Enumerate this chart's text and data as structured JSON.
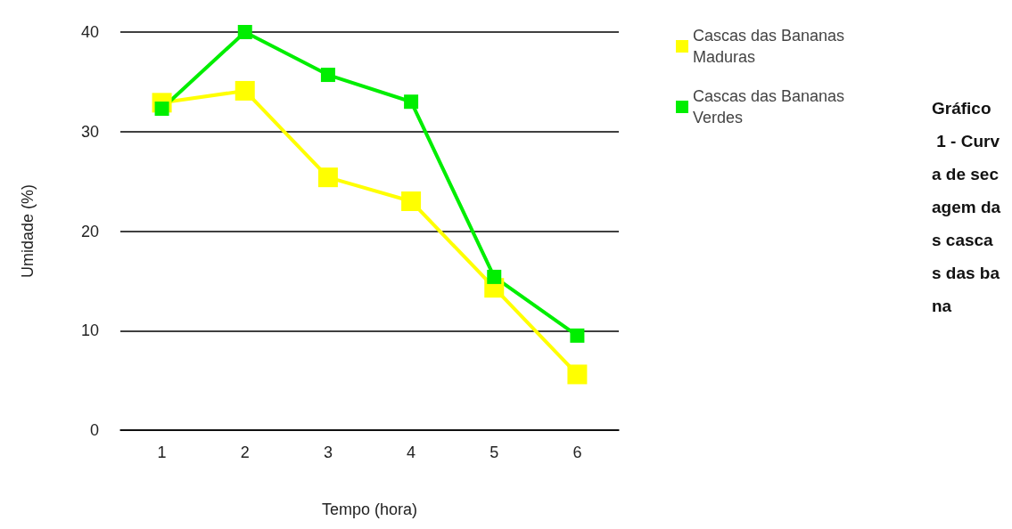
{
  "chart_data": {
    "type": "line",
    "categories": [
      "1",
      "2",
      "3",
      "4",
      "5",
      "6"
    ],
    "xlabel": "Tempo (hora)",
    "ylabel": "Umidade (%)",
    "ylim": [
      0,
      40
    ],
    "yticks": [
      0,
      10,
      20,
      30,
      40
    ],
    "grid": "y",
    "legend": "top right",
    "marker": "square",
    "line_style": "solid",
    "series": [
      {
        "name": "Cascas das Bananas Maduras",
        "color": "#ffff00",
        "values": [
          32.9,
          34.1,
          25.4,
          23.0,
          14.3,
          5.6
        ]
      },
      {
        "name": "Cascas das Bananas Verdes",
        "color": "#00ee00",
        "values": [
          32.3,
          40,
          35.7,
          33.0,
          15.4,
          9.5
        ]
      }
    ],
    "annotations": [
      "Gráfico 1 - Curva de secagem das cascas das bana"
    ]
  }
}
